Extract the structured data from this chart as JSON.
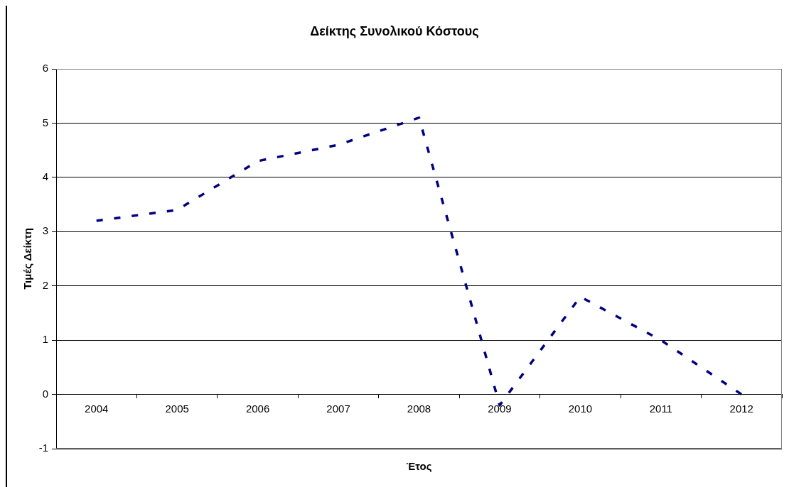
{
  "chart_data": {
    "type": "line",
    "title": "Δείκτης Συνολικού Κόστους",
    "xlabel": "Έτος",
    "ylabel": "Τιμές Δείκτη",
    "categories": [
      "2004",
      "2005",
      "2006",
      "2007",
      "2008",
      "2009",
      "2010",
      "2011",
      "2012"
    ],
    "values": [
      3.2,
      3.4,
      4.3,
      4.6,
      5.1,
      -0.2,
      1.8,
      1.0,
      0.0
    ],
    "color": "#000080",
    "ylim": [
      -1,
      6
    ],
    "yticks": [
      -1,
      0,
      1,
      2,
      3,
      4,
      5,
      6
    ],
    "grid": "y",
    "marker": "none",
    "line_style": "dashed"
  }
}
